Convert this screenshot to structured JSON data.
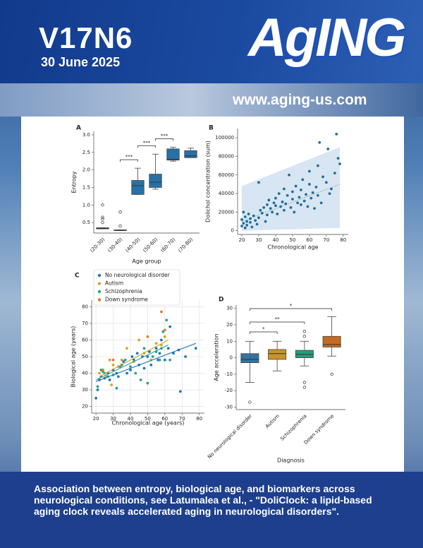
{
  "header": {
    "volume": "V17N6",
    "date": "30 June 2025",
    "journal": "AgING",
    "url": "www.aging-us.com"
  },
  "caption": "Association between entropy, biological age, and biomarkers across neurological conditions, see Latumalea et al., - \"DoliClock: a lipid-based aging clock reveals accelerated aging in neurological disorders\".",
  "chart_data": [
    {
      "type": "box",
      "panel": "A",
      "xlabel": "Age group",
      "ylabel": "Entropy",
      "categories": [
        "(20-30)",
        "(30-40)",
        "(40-50)",
        "(50-60)",
        "(60-70)",
        "(70-80)"
      ],
      "colors": [
        "#2771a8",
        "#2771a8",
        "#2771a8",
        "#2771a8",
        "#2771a8",
        "#2771a8"
      ],
      "boxes": [
        {
          "min": 0.32,
          "q1": 0.32,
          "median": 0.33,
          "q3": 0.35,
          "max": 0.35,
          "outliers": [
            0.5,
            0.6,
            0.65,
            1.0
          ]
        },
        {
          "min": 0.27,
          "q1": 0.27,
          "median": 0.28,
          "q3": 0.29,
          "max": 0.29,
          "outliers": [
            0.4,
            0.8
          ]
        },
        {
          "min": 1.3,
          "q1": 1.3,
          "median": 1.55,
          "q3": 1.7,
          "max": 2.05,
          "outliers": []
        },
        {
          "min": 1.45,
          "q1": 1.5,
          "median": 1.65,
          "q3": 1.88,
          "max": 2.45,
          "outliers": []
        },
        {
          "min": 2.25,
          "q1": 2.28,
          "median": 2.3,
          "q3": 2.6,
          "max": 2.65,
          "outliers": []
        },
        {
          "min": 2.35,
          "q1": 2.35,
          "median": 2.4,
          "q3": 2.55,
          "max": 2.62,
          "outliers": []
        }
      ],
      "annotations": [
        "***",
        "***",
        "***"
      ],
      "ylim": [
        0.2,
        3.1
      ],
      "yticks": [
        0.5,
        {
          "value": 1,
          "label": "1.0"
        },
        1.5,
        {
          "value": 2,
          "label": "2.0"
        },
        2.5,
        {
          "value": 3,
          "label": "3.0"
        }
      ]
    },
    {
      "type": "scatter",
      "panel": "B",
      "xlabel": "Chronological age",
      "ylabel": "Dolichol concentration (sum)",
      "color": "#1f6f9f",
      "x": [
        20,
        20,
        21,
        21,
        22,
        22,
        23,
        23,
        24,
        25,
        25,
        26,
        27,
        28,
        29,
        30,
        30,
        31,
        32,
        33,
        34,
        35,
        35,
        36,
        37,
        38,
        39,
        40,
        40,
        41,
        42,
        43,
        44,
        45,
        45,
        46,
        47,
        48,
        49,
        50,
        50,
        51,
        52,
        53,
        54,
        55,
        55,
        56,
        57,
        58,
        59,
        60,
        60,
        61,
        62,
        63,
        64,
        65,
        65,
        66,
        67,
        68,
        70,
        71,
        72,
        73,
        75,
        76,
        77,
        78
      ],
      "values": [
        5000,
        12000,
        8000,
        20000,
        3000,
        15000,
        10000,
        6000,
        18000,
        9000,
        13000,
        4000,
        16000,
        11000,
        7000,
        52000,
        14000,
        22000,
        19000,
        25000,
        10000,
        28000,
        17000,
        33000,
        24000,
        20000,
        30000,
        27000,
        35000,
        18000,
        40000,
        26000,
        31000,
        45000,
        22000,
        29000,
        38000,
        60000,
        25000,
        34000,
        42000,
        20000,
        48000,
        30000,
        36000,
        28000,
        44000,
        55000,
        32000,
        39000,
        26000,
        50000,
        64000,
        35000,
        41000,
        24000,
        47000,
        70000,
        38000,
        95000,
        30000,
        58000,
        52000,
        88000,
        40000,
        45000,
        62000,
        104000,
        78000,
        72000
      ],
      "trend": {
        "x": [
          20,
          78
        ],
        "y": [
          10000,
          50000
        ]
      },
      "band": {
        "x": [
          20,
          78
        ],
        "upper": [
          48000,
          90000
        ],
        "lower": [
          0,
          3000
        ]
      },
      "xlim": [
        17.5,
        83
      ],
      "ylim": [
        -4000,
        110000
      ],
      "xticks": [
        20,
        30,
        40,
        50,
        60,
        70,
        80
      ],
      "yticks": [
        0,
        20000,
        40000,
        60000,
        80000,
        100000
      ]
    },
    {
      "type": "scatter",
      "panel": "C",
      "xlabel": "Chronological age (years)",
      "ylabel": "Biological age (years)",
      "grid": true,
      "legend": "upper left",
      "series": [
        {
          "name": "No neurological disorder",
          "color": "#1f77b4",
          "x": [
            20,
            21,
            22,
            23,
            25,
            27,
            28,
            30,
            32,
            33,
            35,
            36,
            38,
            40,
            41,
            42,
            44,
            45,
            47,
            48,
            50,
            51,
            52,
            55,
            56,
            57,
            58,
            60,
            62,
            63,
            65,
            68,
            69,
            72,
            78
          ],
          "values": [
            25,
            30,
            36,
            38,
            37,
            40,
            36,
            42,
            40,
            38,
            45,
            47,
            40,
            42,
            50,
            48,
            52,
            45,
            50,
            43,
            50,
            53,
            45,
            55,
            48,
            52,
            60,
            48,
            55,
            68,
            52,
            54,
            29,
            50,
            55
          ],
          "fit": {
            "x": [
              20,
              78
            ],
            "y": [
              35,
              58
            ]
          }
        },
        {
          "name": "Autism",
          "color": "#d4a22a",
          "x": [
            22,
            24,
            26,
            28,
            29,
            30,
            33,
            35,
            38,
            42,
            45,
            48,
            52,
            55,
            58,
            60
          ],
          "values": [
            40,
            42,
            38,
            48,
            33,
            45,
            44,
            48,
            55,
            47,
            60,
            52,
            48,
            58,
            57,
            62
          ],
          "fit": {
            "x": [
              22,
              62
            ],
            "y": [
              38,
              60
            ]
          }
        },
        {
          "name": "Schizophrenia",
          "color": "#2aa38a",
          "x": [
            21,
            23,
            24,
            25,
            27,
            30,
            32,
            34,
            37,
            40,
            43,
            46,
            48,
            50,
            53,
            55,
            57,
            58,
            59,
            61,
            63
          ],
          "values": [
            32,
            42,
            41,
            40,
            38,
            39,
            31,
            44,
            48,
            44,
            40,
            36,
            55,
            34,
            50,
            53,
            48,
            55,
            65,
            72,
            48
          ],
          "fit": {
            "x": [
              20,
              62
            ],
            "y": [
              36,
              57
            ]
          }
        },
        {
          "name": "Down syndrome",
          "color": "#e07b2a",
          "x": [
            24,
            30,
            50,
            58,
            60
          ],
          "values": [
            42,
            48,
            62,
            77,
            66
          ]
        }
      ],
      "xlim": [
        17.5,
        83
      ],
      "ylim": [
        16,
        84
      ],
      "xticks": [
        20,
        30,
        40,
        50,
        60,
        70,
        80
      ],
      "yticks": [
        20,
        30,
        40,
        50,
        60,
        70,
        80
      ]
    },
    {
      "type": "box",
      "panel": "D",
      "xlabel": "Diagnosis",
      "ylabel": "Age acceleration",
      "categories": [
        "No neurological disorder",
        "Autism",
        "Schizophrenia",
        "Down syndrome"
      ],
      "colors": [
        "#3274a1",
        "#c99426",
        "#2a9a7c",
        "#c46a23"
      ],
      "boxes": [
        {
          "min": -15,
          "q1": -3,
          "median": -1,
          "q3": 2.5,
          "max": 10,
          "outliers": [
            -27
          ]
        },
        {
          "min": -8,
          "q1": -1,
          "median": 2.5,
          "q3": 5,
          "max": 10,
          "outliers": []
        },
        {
          "min": -5,
          "q1": 0,
          "median": 2,
          "q3": 4.5,
          "max": 10,
          "outliers": [
            13,
            16,
            -15,
            -18
          ]
        },
        {
          "min": 1,
          "q1": 6.5,
          "median": 8,
          "q3": 13,
          "max": 25,
          "outliers": [
            -10
          ]
        }
      ],
      "annotations": [
        "*",
        "**",
        "*"
      ],
      "ylim": [
        -31.5,
        32
      ],
      "yticks": [
        -30,
        -20,
        -10,
        0,
        10,
        20,
        30
      ]
    }
  ]
}
